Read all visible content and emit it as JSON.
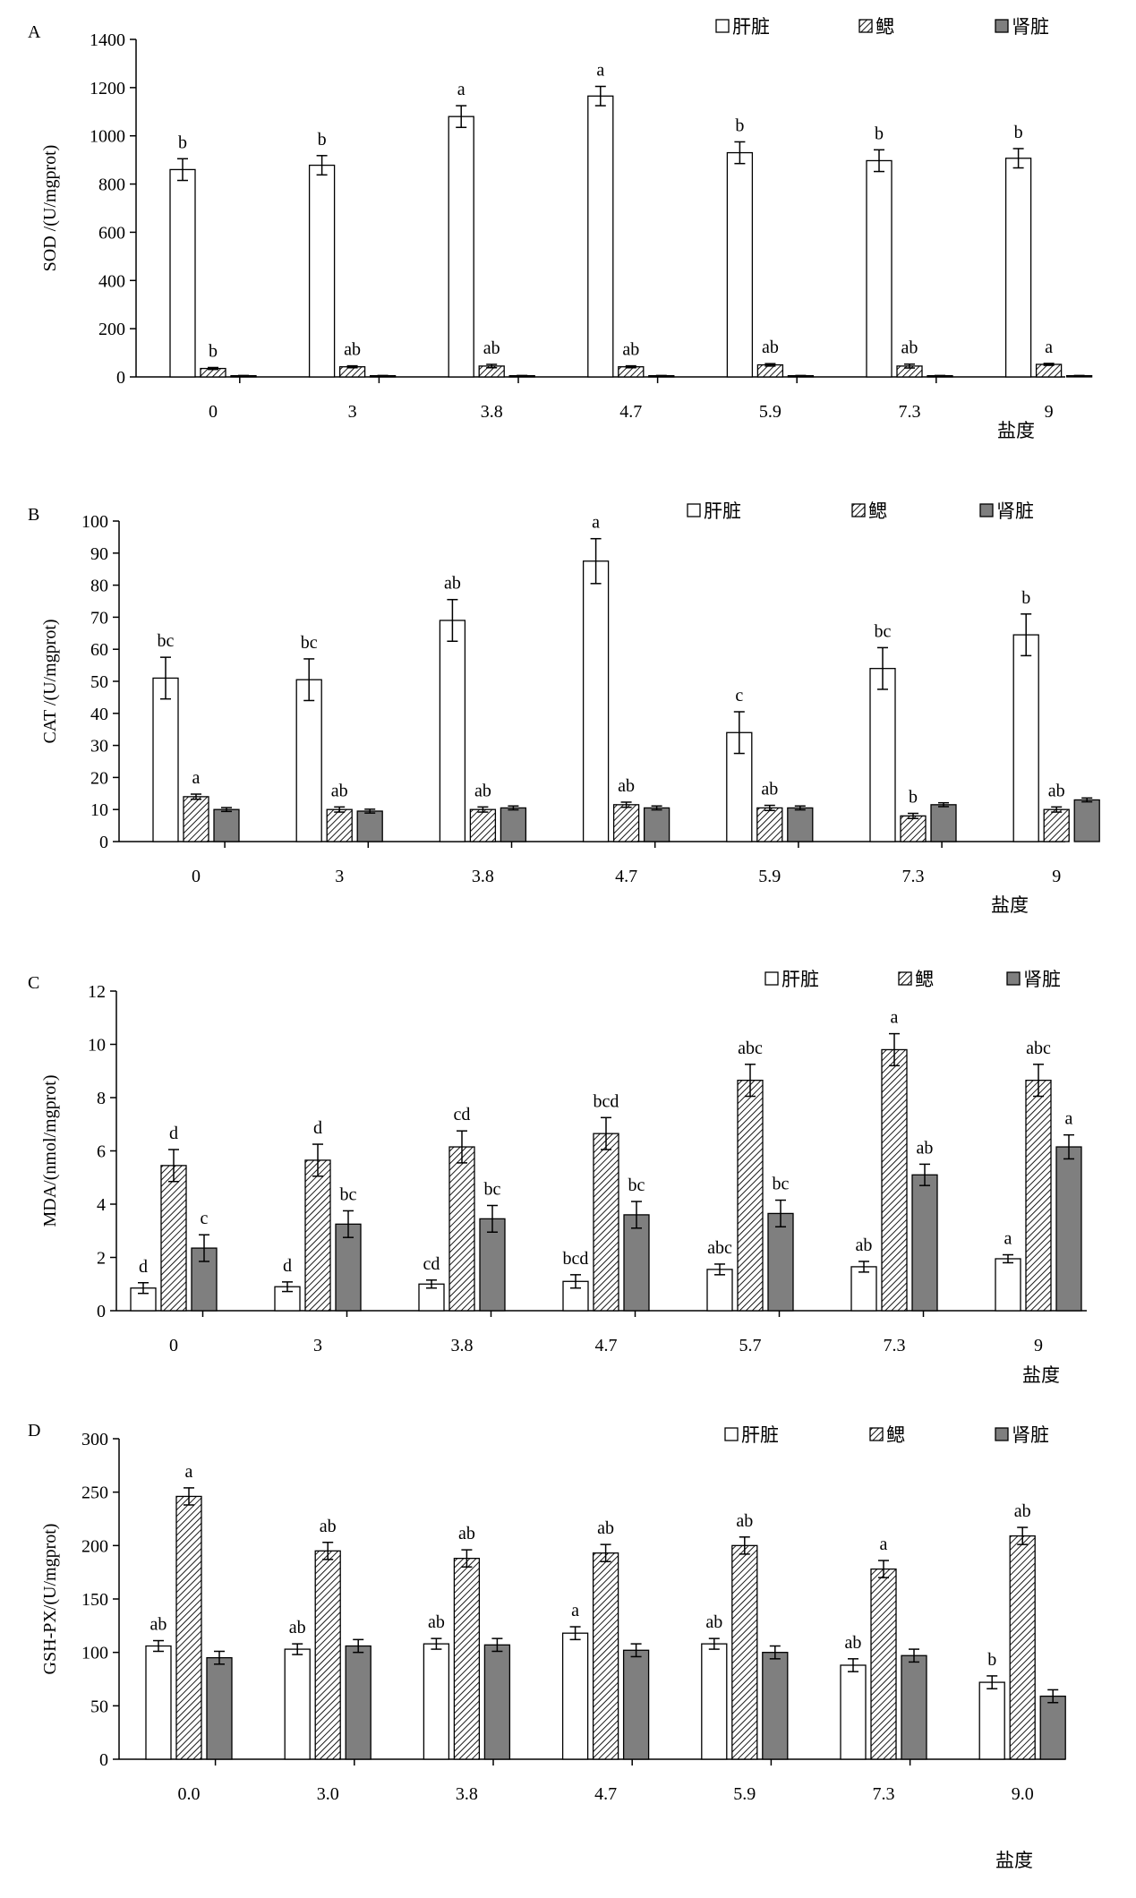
{
  "legend_labels": [
    "肝脏",
    "鳃",
    "肾脏"
  ],
  "colors": {
    "liver": "#ffffff",
    "gill_hatch": "#000000",
    "kidney": "#7f7f7f",
    "axis": "#000000"
  },
  "chart_data": [
    {
      "type": "bar",
      "panel": "A",
      "ylabel": "SOD /(U/mgprot)",
      "xlabel": "盐度",
      "categories": [
        "0",
        "3",
        "3.8",
        "4.7",
        "5.9",
        "7.3",
        "9"
      ],
      "ylim": [
        0,
        1400
      ],
      "yticks": [
        0,
        200,
        400,
        600,
        800,
        1000,
        1200,
        1400
      ],
      "legend_position": "top-right",
      "series": [
        {
          "name": "肝脏",
          "values": [
            860,
            878,
            1080,
            1165,
            930,
            897,
            907
          ],
          "errors": [
            45,
            40,
            45,
            40,
            45,
            45,
            40
          ],
          "labels": [
            "b",
            "b",
            "a",
            "a",
            "b",
            "b",
            "b"
          ]
        },
        {
          "name": "鳃",
          "values": [
            35,
            42,
            45,
            42,
            50,
            45,
            52
          ],
          "errors": [
            4,
            4,
            7,
            4,
            5,
            8,
            4
          ],
          "labels": [
            "b",
            "ab",
            "ab",
            "ab",
            "ab",
            "ab",
            "a"
          ]
        },
        {
          "name": "肾脏",
          "values": [
            5,
            5,
            5,
            5,
            5,
            5,
            5
          ],
          "errors": [
            1,
            1,
            1,
            1,
            1,
            1,
            1
          ],
          "labels": [
            "",
            "",
            "",
            "",
            "",
            "",
            ""
          ]
        }
      ]
    },
    {
      "type": "bar",
      "panel": "B",
      "ylabel": "CAT /(U/mgprot)",
      "xlabel": "盐度",
      "categories": [
        "0",
        "3",
        "3.8",
        "4.7",
        "5.9",
        "7.3",
        "9"
      ],
      "ylim": [
        0,
        100
      ],
      "yticks": [
        0,
        10,
        20,
        30,
        40,
        50,
        60,
        70,
        80,
        90,
        100
      ],
      "legend_position": "top-right",
      "series": [
        {
          "name": "肝脏",
          "values": [
            51,
            50.5,
            69,
            87.5,
            34,
            54,
            64.5
          ],
          "errors": [
            6.5,
            6.5,
            6.5,
            7,
            6.5,
            6.5,
            6.5
          ],
          "labels": [
            "bc",
            "bc",
            "ab",
            "a",
            "c",
            "bc",
            "b"
          ]
        },
        {
          "name": "鳃",
          "values": [
            14,
            10,
            10,
            11.5,
            10.5,
            8,
            10
          ],
          "errors": [
            0.8,
            0.8,
            0.8,
            0.8,
            0.8,
            0.8,
            0.8
          ],
          "labels": [
            "a",
            "ab",
            "ab",
            "ab",
            "ab",
            "b",
            "ab"
          ]
        },
        {
          "name": "肾脏",
          "values": [
            10,
            9.5,
            10.5,
            10.5,
            10.5,
            11.5,
            13
          ],
          "errors": [
            0.6,
            0.6,
            0.6,
            0.6,
            0.6,
            0.6,
            0.6
          ],
          "labels": [
            "",
            "",
            "",
            "",
            "",
            "",
            ""
          ]
        }
      ]
    },
    {
      "type": "bar",
      "panel": "C",
      "ylabel": "MDA/(nmol/mgprot)",
      "xlabel": "盐度",
      "categories": [
        "0",
        "3",
        "3.8",
        "4.7",
        "5.7",
        "7.3",
        "9"
      ],
      "ylim": [
        0,
        12
      ],
      "yticks": [
        0,
        2,
        4,
        6,
        8,
        10,
        12
      ],
      "legend_position": "top-right",
      "series": [
        {
          "name": "肝脏",
          "values": [
            0.85,
            0.9,
            1.0,
            1.1,
            1.55,
            1.65,
            1.95
          ],
          "errors": [
            0.2,
            0.18,
            0.15,
            0.25,
            0.2,
            0.2,
            0.15
          ],
          "labels": [
            "d",
            "d",
            "cd",
            "bcd",
            "abc",
            "ab",
            "a"
          ]
        },
        {
          "name": "鳃",
          "values": [
            5.45,
            5.65,
            6.15,
            6.65,
            8.65,
            9.8,
            8.65
          ],
          "errors": [
            0.6,
            0.6,
            0.6,
            0.6,
            0.6,
            0.6,
            0.6
          ],
          "labels": [
            "d",
            "d",
            "cd",
            "bcd",
            "abc",
            "a",
            "abc"
          ]
        },
        {
          "name": "肾脏",
          "values": [
            2.35,
            3.25,
            3.45,
            3.6,
            3.65,
            5.1,
            6.15
          ],
          "errors": [
            0.5,
            0.5,
            0.5,
            0.5,
            0.5,
            0.4,
            0.45
          ],
          "labels": [
            "c",
            "bc",
            "bc",
            "bc",
            "bc",
            "ab",
            "a"
          ]
        }
      ]
    },
    {
      "type": "bar",
      "panel": "D",
      "ylabel": "GSH-PX/(U/mgprot)",
      "xlabel": "盐度",
      "categories": [
        "0.0",
        "3.0",
        "3.8",
        "4.7",
        "5.9",
        "7.3",
        "9.0"
      ],
      "ylim": [
        0,
        300
      ],
      "yticks": [
        0,
        50,
        100,
        150,
        200,
        250,
        300
      ],
      "legend_position": "top-right",
      "series": [
        {
          "name": "肝脏",
          "values": [
            106,
            103,
            108,
            118,
            108,
            88,
            72
          ],
          "errors": [
            5,
            5,
            5,
            6,
            5,
            6,
            6
          ],
          "labels": [
            "ab",
            "ab",
            "ab",
            "a",
            "ab",
            "ab",
            "b"
          ]
        },
        {
          "name": "鳃",
          "values": [
            246,
            195,
            188,
            193,
            200,
            178,
            209
          ],
          "errors": [
            8,
            8,
            8,
            8,
            8,
            8,
            8
          ],
          "labels": [
            "a",
            "ab",
            "ab",
            "ab",
            "ab",
            "a",
            "ab"
          ]
        },
        {
          "name": "肾脏",
          "values": [
            95,
            106,
            107,
            102,
            100,
            97,
            59
          ],
          "errors": [
            6,
            6,
            6,
            6,
            6,
            6,
            6
          ],
          "labels": [
            "",
            "",
            "",
            "",
            "",
            "",
            ""
          ]
        }
      ]
    }
  ]
}
